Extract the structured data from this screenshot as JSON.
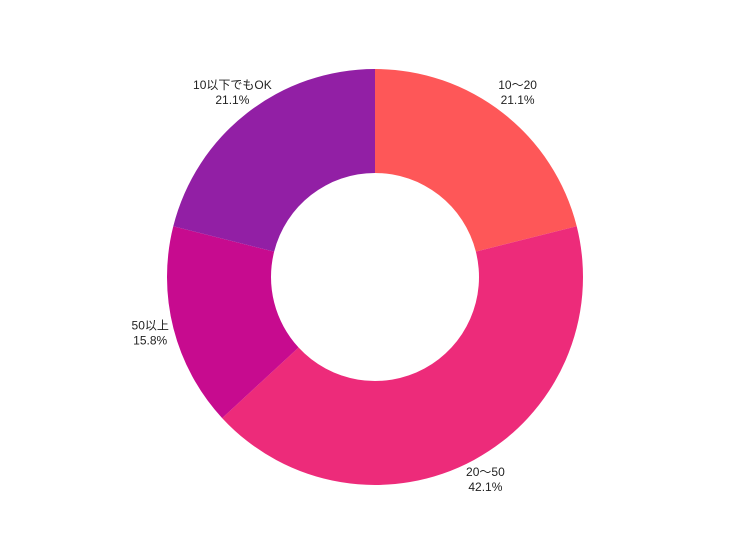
{
  "chart_data": {
    "type": "pie",
    "variant": "donut",
    "categories": [
      "10〜20",
      "20〜50",
      "50以上",
      "10以下でもOK"
    ],
    "values": [
      21.1,
      42.1,
      15.8,
      21.1
    ],
    "percent_labels": [
      "21.1%",
      "42.1%",
      "15.8%",
      "21.1%"
    ],
    "colors": [
      "#fe5758",
      "#ed2b7a",
      "#c70b8f",
      "#921fa5"
    ],
    "start_angle": "12 o'clock",
    "direction": "clockwise",
    "legend": "none",
    "title": ""
  }
}
